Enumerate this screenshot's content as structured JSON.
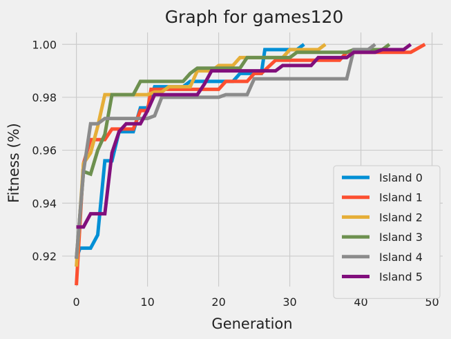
{
  "chart_data": {
    "type": "line",
    "title": "Graph for games120",
    "xlabel": "Generation",
    "ylabel": "Fitness (%)",
    "xlim": [
      -2,
      51.5
    ],
    "ylim": [
      0.9085,
      1.0045
    ],
    "xticks": [
      0,
      10,
      20,
      30,
      40,
      50
    ],
    "yticks": [
      0.92,
      0.94,
      0.96,
      0.98,
      1.0
    ],
    "ytick_labels": [
      "0.92",
      "0.94",
      "0.96",
      "0.98",
      "1.00"
    ],
    "grid": true,
    "legend_position": "lower-right",
    "series": [
      {
        "name": "Island 0",
        "color": "#008fd5",
        "points": [
          [
            0,
            0.919
          ],
          [
            0.5,
            0.923
          ],
          [
            1,
            0.923
          ],
          [
            2,
            0.923
          ],
          [
            3,
            0.928
          ],
          [
            4,
            0.956
          ],
          [
            5,
            0.956
          ],
          [
            6,
            0.967
          ],
          [
            7,
            0.967
          ],
          [
            8,
            0.967
          ],
          [
            9,
            0.976
          ],
          [
            10,
            0.976
          ],
          [
            11,
            0.984
          ],
          [
            12,
            0.984
          ],
          [
            15,
            0.984
          ],
          [
            16,
            0.986
          ],
          [
            22,
            0.986
          ],
          [
            23,
            0.989
          ],
          [
            26,
            0.989
          ],
          [
            26.5,
            0.998
          ],
          [
            31,
            0.998
          ],
          [
            32,
            1.0
          ]
        ]
      },
      {
        "name": "Island 1",
        "color": "#fc4f30",
        "points": [
          [
            0,
            0.909
          ],
          [
            1,
            0.955
          ],
          [
            2,
            0.964
          ],
          [
            4,
            0.964
          ],
          [
            5,
            0.968
          ],
          [
            8,
            0.968
          ],
          [
            9,
            0.975
          ],
          [
            10,
            0.975
          ],
          [
            10.5,
            0.983
          ],
          [
            19,
            0.983
          ],
          [
            20,
            0.983
          ],
          [
            21,
            0.986
          ],
          [
            24,
            0.986
          ],
          [
            25,
            0.989
          ],
          [
            26,
            0.989
          ],
          [
            28,
            0.994
          ],
          [
            37,
            0.994
          ],
          [
            38,
            0.997
          ],
          [
            47,
            0.997
          ],
          [
            49,
            1.0
          ]
        ]
      },
      {
        "name": "Island 2",
        "color": "#e5ae38",
        "points": [
          [
            0,
            0.916
          ],
          [
            1,
            0.955
          ],
          [
            2,
            0.959
          ],
          [
            3,
            0.969
          ],
          [
            4,
            0.981
          ],
          [
            10,
            0.981
          ],
          [
            11,
            0.982
          ],
          [
            12,
            0.982
          ],
          [
            13,
            0.984
          ],
          [
            16,
            0.984
          ],
          [
            17,
            0.99
          ],
          [
            19,
            0.99
          ],
          [
            20,
            0.992
          ],
          [
            22,
            0.992
          ],
          [
            23,
            0.995
          ],
          [
            29,
            0.995
          ],
          [
            30,
            0.998
          ],
          [
            34,
            0.998
          ],
          [
            35,
            1.0
          ]
        ]
      },
      {
        "name": "Island 3",
        "color": "#6d904f",
        "points": [
          [
            0,
            0.919
          ],
          [
            1,
            0.952
          ],
          [
            2,
            0.951
          ],
          [
            3,
            0.96
          ],
          [
            4,
            0.966
          ],
          [
            5,
            0.981
          ],
          [
            8,
            0.981
          ],
          [
            9,
            0.986
          ],
          [
            15,
            0.986
          ],
          [
            16,
            0.989
          ],
          [
            17,
            0.991
          ],
          [
            23,
            0.991
          ],
          [
            24,
            0.995
          ],
          [
            30,
            0.995
          ],
          [
            31,
            0.997
          ],
          [
            38,
            0.997
          ],
          [
            39,
            0.998
          ],
          [
            43,
            0.998
          ],
          [
            44,
            1.0
          ]
        ]
      },
      {
        "name": "Island 4",
        "color": "#8b8b8b",
        "points": [
          [
            0,
            0.919
          ],
          [
            1,
            0.952
          ],
          [
            2,
            0.97
          ],
          [
            3,
            0.97
          ],
          [
            4,
            0.972
          ],
          [
            10,
            0.972
          ],
          [
            11,
            0.973
          ],
          [
            12,
            0.98
          ],
          [
            20,
            0.98
          ],
          [
            21,
            0.981
          ],
          [
            24,
            0.981
          ],
          [
            25,
            0.987
          ],
          [
            38,
            0.987
          ],
          [
            39,
            0.998
          ],
          [
            41,
            0.998
          ],
          [
            42,
            1.0
          ]
        ]
      },
      {
        "name": "Island 5",
        "color": "#810f7c",
        "points": [
          [
            0,
            0.931
          ],
          [
            1,
            0.931
          ],
          [
            2,
            0.936
          ],
          [
            4,
            0.936
          ],
          [
            5,
            0.959
          ],
          [
            6,
            0.967
          ],
          [
            7,
            0.97
          ],
          [
            9,
            0.97
          ],
          [
            10,
            0.975
          ],
          [
            11,
            0.981
          ],
          [
            17,
            0.981
          ],
          [
            18,
            0.985
          ],
          [
            19,
            0.99
          ],
          [
            28,
            0.99
          ],
          [
            29,
            0.992
          ],
          [
            33,
            0.992
          ],
          [
            34,
            0.995
          ],
          [
            38,
            0.995
          ],
          [
            39,
            0.997
          ],
          [
            42,
            0.997
          ],
          [
            43,
            0.998
          ],
          [
            46,
            0.998
          ],
          [
            47,
            1.0
          ]
        ]
      }
    ]
  }
}
